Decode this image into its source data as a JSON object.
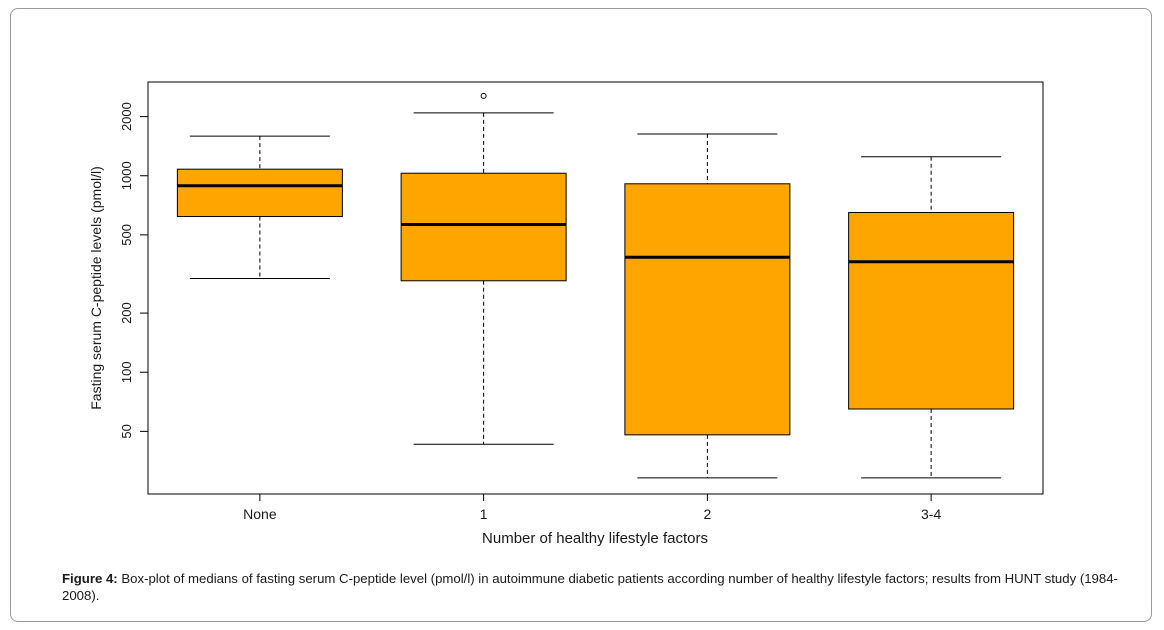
{
  "chart_data": {
    "type": "boxplot",
    "categories": [
      "None",
      "1",
      "2",
      "3-4"
    ],
    "series": [
      {
        "category": "None",
        "lower_whisker": 300,
        "q1": 620,
        "median": 890,
        "q3": 1080,
        "upper_whisker": 1590,
        "outliers": []
      },
      {
        "category": "1",
        "lower_whisker": 43,
        "q1": 292,
        "median": 565,
        "q3": 1030,
        "upper_whisker": 2090,
        "outliers": [
          2550
        ]
      },
      {
        "category": "2",
        "lower_whisker": 29,
        "q1": 48,
        "median": 385,
        "q3": 910,
        "upper_whisker": 1630,
        "outliers": []
      },
      {
        "category": "3-4",
        "lower_whisker": 29,
        "q1": 65,
        "median": 365,
        "q3": 650,
        "upper_whisker": 1250,
        "outliers": []
      }
    ],
    "xlabel": "Number of healthy lifestyle factors",
    "ylabel": "Fasting serum C-peptide levels (pmol/l)",
    "y_scale": "log",
    "ylim": [
      24,
      3000
    ],
    "y_ticks": [
      50,
      100,
      200,
      500,
      1000,
      2000
    ],
    "colors": {
      "box_fill": "#FFA500",
      "stroke": "#000000"
    },
    "grid": false
  },
  "caption": {
    "label": "Figure 4:",
    "text": " Box-plot of medians of fasting serum C-peptide level (pmol/l) in autoimmune diabetic patients according  number of healthy lifestyle factors; results from HUNT study (1984-2008)."
  }
}
